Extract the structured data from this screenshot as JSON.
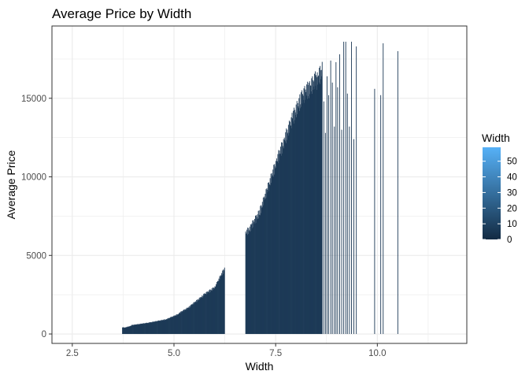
{
  "chart_data": {
    "type": "bar",
    "title": "Average Price by Width",
    "xlabel": "Width",
    "ylabel": "Average Price",
    "xlim": [
      2.0,
      12.2
    ],
    "ylim": [
      -600,
      19600
    ],
    "x_ticks": [
      2.5,
      5.0,
      7.5,
      10.0
    ],
    "x_tick_labels": [
      "2.5",
      "5.0",
      "7.5",
      "10.0"
    ],
    "y_ticks": [
      0,
      5000,
      10000,
      15000
    ],
    "y_tick_labels": [
      "0",
      "5000",
      "10000",
      "15000"
    ],
    "grid": true,
    "legend": {
      "title": "Width",
      "position": "right",
      "breaks": [
        0,
        10,
        20,
        30,
        40,
        50
      ],
      "labels": [
        "0",
        "10",
        "20",
        "30",
        "40",
        "50"
      ],
      "range": [
        0,
        58.9
      ],
      "color_low": "#132B43",
      "color_high": "#56B1F7"
    },
    "bar_color": "#1d3a57",
    "bar_width": 0.01,
    "segments": [
      {
        "x_start": 3.73,
        "x_end": 3.76,
        "y_start": 420,
        "y_end": 420
      },
      {
        "x_start": 3.77,
        "x_end": 3.95,
        "y_start": 390,
        "y_end": 520
      },
      {
        "x_start": 3.96,
        "x_end": 4.4,
        "y_start": 560,
        "y_end": 720
      },
      {
        "x_start": 4.41,
        "x_end": 4.8,
        "y_start": 730,
        "y_end": 920
      },
      {
        "x_start": 4.81,
        "x_end": 5.1,
        "y_start": 930,
        "y_end": 1250
      },
      {
        "x_start": 5.11,
        "x_end": 5.4,
        "y_start": 1300,
        "y_end": 1750
      },
      {
        "x_start": 5.41,
        "x_end": 5.7,
        "y_start": 1800,
        "y_end": 2400
      },
      {
        "x_start": 5.71,
        "x_end": 6.0,
        "y_start": 2450,
        "y_end": 2950
      },
      {
        "x_start": 6.01,
        "x_end": 6.24,
        "y_start": 3000,
        "y_end": 4150
      },
      {
        "x_start": 6.76,
        "x_end": 6.9,
        "y_start": 6400,
        "y_end": 6800
      },
      {
        "x_start": 6.91,
        "x_end": 7.1,
        "y_start": 6900,
        "y_end": 7700
      },
      {
        "x_start": 7.11,
        "x_end": 7.3,
        "y_start": 7800,
        "y_end": 9200
      },
      {
        "x_start": 7.31,
        "x_end": 7.5,
        "y_start": 9300,
        "y_end": 10800
      },
      {
        "x_start": 7.51,
        "x_end": 7.7,
        "y_start": 10900,
        "y_end": 12200
      },
      {
        "x_start": 7.71,
        "x_end": 7.9,
        "y_start": 12300,
        "y_end": 13600
      },
      {
        "x_start": 7.91,
        "x_end": 8.1,
        "y_start": 13700,
        "y_end": 14800
      },
      {
        "x_start": 8.11,
        "x_end": 8.3,
        "y_start": 14900,
        "y_end": 15600
      },
      {
        "x_start": 8.31,
        "x_end": 8.5,
        "y_start": 15500,
        "y_end": 16300
      },
      {
        "x_start": 8.51,
        "x_end": 8.64,
        "y_start": 16100,
        "y_end": 16800
      }
    ],
    "sparse_bars": [
      {
        "x": 8.68,
        "y": 14800
      },
      {
        "x": 8.72,
        "y": 12800
      },
      {
        "x": 8.76,
        "y": 16400
      },
      {
        "x": 8.8,
        "y": 15200
      },
      {
        "x": 8.85,
        "y": 17400
      },
      {
        "x": 8.89,
        "y": 16000
      },
      {
        "x": 8.94,
        "y": 13200
      },
      {
        "x": 8.98,
        "y": 17300
      },
      {
        "x": 9.02,
        "y": 15700
      },
      {
        "x": 9.07,
        "y": 17800
      },
      {
        "x": 9.12,
        "y": 13000
      },
      {
        "x": 9.17,
        "y": 18600
      },
      {
        "x": 9.22,
        "y": 18600
      },
      {
        "x": 9.26,
        "y": 15300
      },
      {
        "x": 9.31,
        "y": 13200
      },
      {
        "x": 9.36,
        "y": 18600
      },
      {
        "x": 9.42,
        "y": 12400
      },
      {
        "x": 9.48,
        "y": 18300
      },
      {
        "x": 9.93,
        "y": 15600
      },
      {
        "x": 10.08,
        "y": 15200
      },
      {
        "x": 10.14,
        "y": 18500
      },
      {
        "x": 10.5,
        "y": 18000
      }
    ]
  }
}
